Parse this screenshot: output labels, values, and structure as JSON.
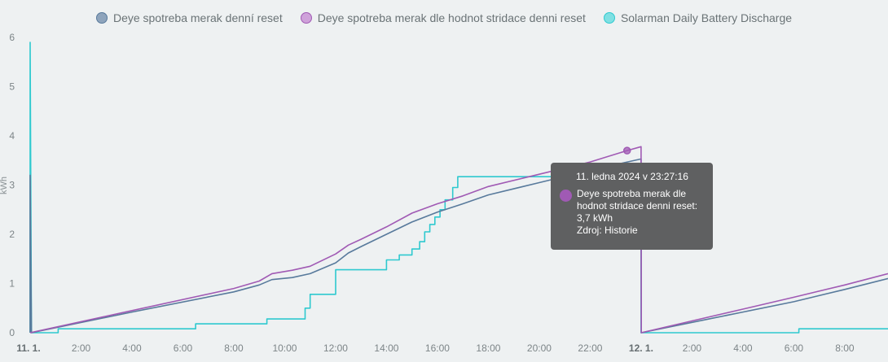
{
  "chart_data": {
    "type": "line",
    "y_axis": {
      "label": "kWh",
      "ylim": [
        0,
        6
      ],
      "ticks": [
        "0",
        "1",
        "2",
        "3",
        "4",
        "5",
        "6"
      ]
    },
    "x_axis": {
      "range_hours": [
        0,
        33.7
      ],
      "ticks": [
        {
          "h": 0,
          "label": "11. 1.",
          "bold": true
        },
        {
          "h": 2,
          "label": "2:00"
        },
        {
          "h": 4,
          "label": "4:00"
        },
        {
          "h": 6,
          "label": "6:00"
        },
        {
          "h": 8,
          "label": "8:00"
        },
        {
          "h": 10,
          "label": "10:00"
        },
        {
          "h": 12,
          "label": "12:00"
        },
        {
          "h": 14,
          "label": "14:00"
        },
        {
          "h": 16,
          "label": "16:00"
        },
        {
          "h": 18,
          "label": "18:00"
        },
        {
          "h": 20,
          "label": "20:00"
        },
        {
          "h": 22,
          "label": "22:00"
        },
        {
          "h": 24,
          "label": "12. 1.",
          "bold": true
        },
        {
          "h": 26,
          "label": "2:00"
        },
        {
          "h": 28,
          "label": "4:00"
        },
        {
          "h": 30,
          "label": "6:00"
        },
        {
          "h": 32,
          "label": "8:00"
        }
      ]
    },
    "legend_position": "top-center",
    "grid": false,
    "series": [
      {
        "name": "Deye spotreba merak denní reset",
        "color": "#587a9c",
        "step": false,
        "points": [
          [
            0,
            0
          ],
          [
            0,
            3.2
          ],
          [
            0.05,
            0
          ],
          [
            4,
            0.42
          ],
          [
            8,
            0.83
          ],
          [
            9,
            0.97
          ],
          [
            9.5,
            1.08
          ],
          [
            10.3,
            1.12
          ],
          [
            11,
            1.2
          ],
          [
            12,
            1.42
          ],
          [
            12.5,
            1.62
          ],
          [
            13,
            1.75
          ],
          [
            14,
            2.0
          ],
          [
            15,
            2.25
          ],
          [
            16,
            2.45
          ],
          [
            17,
            2.62
          ],
          [
            18,
            2.8
          ],
          [
            20,
            3.05
          ],
          [
            22,
            3.3
          ],
          [
            24,
            3.53
          ],
          [
            24.01,
            0
          ],
          [
            26,
            0.21
          ],
          [
            28,
            0.42
          ],
          [
            30,
            0.63
          ],
          [
            32,
            0.88
          ],
          [
            33.7,
            1.1
          ]
        ]
      },
      {
        "name": "Deye spotreba merak dle hodnot stridace denni reset",
        "color": "#a05ab4",
        "step": false,
        "points": [
          [
            0,
            0
          ],
          [
            4,
            0.45
          ],
          [
            8,
            0.9
          ],
          [
            9,
            1.05
          ],
          [
            9.5,
            1.2
          ],
          [
            10.3,
            1.27
          ],
          [
            11,
            1.35
          ],
          [
            12,
            1.6
          ],
          [
            12.5,
            1.78
          ],
          [
            13,
            1.9
          ],
          [
            14,
            2.15
          ],
          [
            15,
            2.43
          ],
          [
            16,
            2.62
          ],
          [
            17,
            2.78
          ],
          [
            18,
            2.97
          ],
          [
            20,
            3.22
          ],
          [
            22,
            3.47
          ],
          [
            23.45,
            3.7
          ],
          [
            24,
            3.78
          ],
          [
            24.01,
            0
          ],
          [
            26,
            0.24
          ],
          [
            28,
            0.48
          ],
          [
            30,
            0.72
          ],
          [
            32,
            0.97
          ],
          [
            33.7,
            1.2
          ]
        ]
      },
      {
        "name": "Solarman Daily Battery Discharge",
        "color": "#2ec9cf",
        "step": true,
        "points": [
          [
            0,
            0
          ],
          [
            0,
            5.9
          ],
          [
            0.05,
            0
          ],
          [
            1.1,
            0
          ],
          [
            1.1,
            0.08
          ],
          [
            6.5,
            0.08
          ],
          [
            6.5,
            0.18
          ],
          [
            9.3,
            0.18
          ],
          [
            9.3,
            0.28
          ],
          [
            10.8,
            0.28
          ],
          [
            10.8,
            0.5
          ],
          [
            11,
            0.5
          ],
          [
            11,
            0.78
          ],
          [
            12,
            0.78
          ],
          [
            12,
            1.28
          ],
          [
            14,
            1.28
          ],
          [
            14,
            1.48
          ],
          [
            14.5,
            1.48
          ],
          [
            14.5,
            1.58
          ],
          [
            15,
            1.58
          ],
          [
            15,
            1.7
          ],
          [
            15.3,
            1.7
          ],
          [
            15.3,
            1.85
          ],
          [
            15.5,
            1.85
          ],
          [
            15.5,
            2.05
          ],
          [
            15.7,
            2.05
          ],
          [
            15.7,
            2.2
          ],
          [
            15.9,
            2.2
          ],
          [
            15.9,
            2.35
          ],
          [
            16.1,
            2.35
          ],
          [
            16.1,
            2.5
          ],
          [
            16.3,
            2.5
          ],
          [
            16.3,
            2.7
          ],
          [
            16.6,
            2.7
          ],
          [
            16.6,
            2.95
          ],
          [
            16.8,
            2.95
          ],
          [
            16.8,
            3.17
          ],
          [
            24,
            3.17
          ],
          [
            24,
            0
          ],
          [
            30.2,
            0
          ],
          [
            30.2,
            0.08
          ],
          [
            33.7,
            0.08
          ]
        ]
      }
    ]
  },
  "tooltip": {
    "title": "11. ledna 2024 v 23:27:16",
    "line1": "Deye spotreba merak dle",
    "line2": "hodnot stridace denni reset:",
    "line3": "3,7 kWh",
    "line4": "Zdroj: Historie",
    "color": "#a05ab4",
    "marker_point": [
      23.45,
      3.7
    ]
  }
}
